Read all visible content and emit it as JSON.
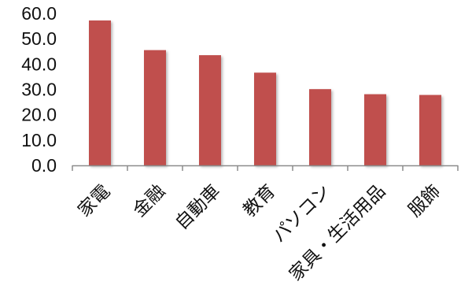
{
  "chart_data": {
    "type": "bar",
    "title": "",
    "xlabel": "",
    "ylabel": "",
    "categories": [
      "家電",
      "金融",
      "自動車",
      "教育",
      "パソコン",
      "家具・生活用品",
      "服飾"
    ],
    "values": [
      57.2,
      45.5,
      43.5,
      36.6,
      30.1,
      28.1,
      27.8
    ],
    "ylim": [
      0,
      60
    ],
    "yticks": [
      "0.0",
      "10.0",
      "20.0",
      "30.0",
      "40.0",
      "50.0",
      "60.0"
    ],
    "grid": false,
    "legend": "none",
    "bar_color": "#c0504d"
  }
}
